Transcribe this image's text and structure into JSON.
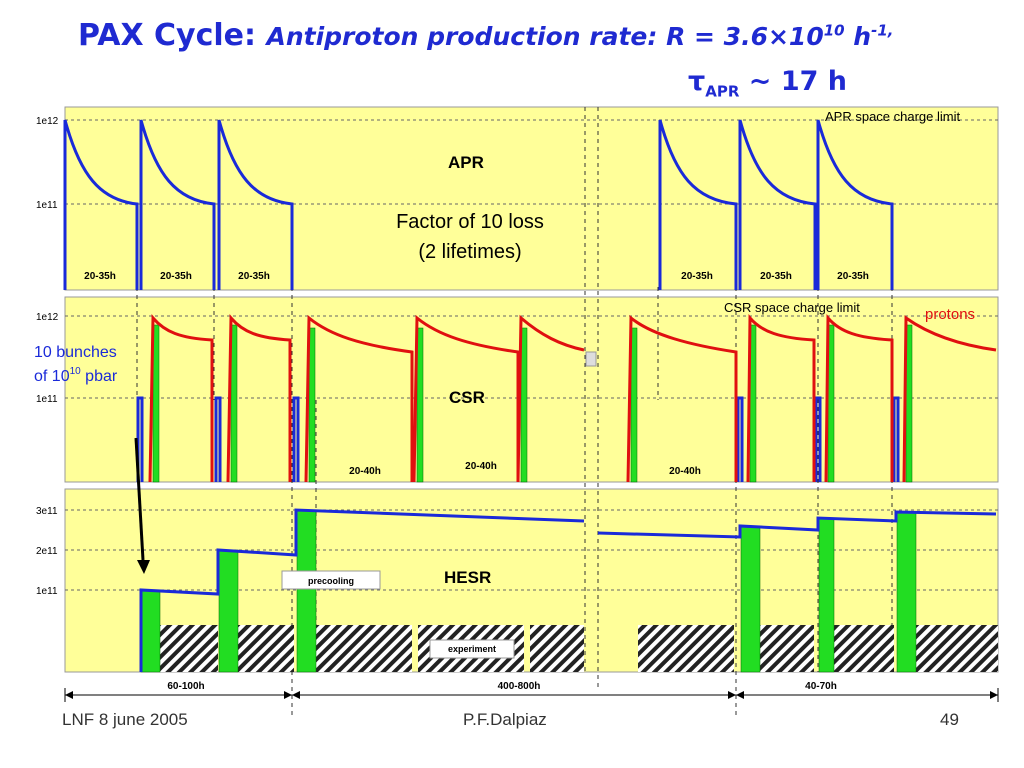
{
  "title": {
    "main": "PAX Cycle:",
    "subtitle_prefix": "Antiproton production rate: R = 3.6×10",
    "rate_exponent": "10",
    "subtitle_unit": " h",
    "unit_exponent": "-1,",
    "tau_symbol": "τ",
    "tau_subscript": "APR",
    "tau_value": " ~ 17 h"
  },
  "footer": {
    "left": "LNF   8 june 2005",
    "center": "P.F.Dalpiaz",
    "page": "49"
  },
  "labels": {
    "apr_limit": "APR space charge limit",
    "csr_limit": "CSR space charge limit",
    "protons": "protons",
    "bunches_line1": "10 bunches",
    "bunches_line2_prefix": "of 10",
    "bunches_exponent": "10",
    "bunches_line2_suffix": " pbar",
    "factor_line1": "Factor of 10 loss",
    "factor_line2": "(2 lifetimes)",
    "precooling": "precooling",
    "experiment": "experiment"
  },
  "panels": {
    "apr": {
      "name": "APR",
      "y_ticks": [
        "1e12",
        "1e11"
      ],
      "duration_labels": [
        "20-35h",
        "20-35h",
        "20-35h",
        "20-35h",
        "20-35h",
        "20-35h"
      ]
    },
    "csr": {
      "name": "CSR",
      "y_ticks": [
        "1e12",
        "1e11"
      ],
      "duration_labels": [
        "20-40h",
        "20-40h",
        "20-40h"
      ]
    },
    "hesr": {
      "name": "HESR",
      "y_ticks": [
        "3e11",
        "2e11",
        "1e11"
      ]
    }
  },
  "timeline": {
    "labels": [
      "60-100h",
      "400-800h",
      "40-70h"
    ]
  },
  "colors": {
    "title": "#1f2ad1",
    "panel_bg": "#ffff99",
    "apr_curve": "#1a2ad9",
    "proton_curve": "#e01010",
    "green_fill": "#22dd22",
    "protons_label": "#e01010",
    "bunch_label": "#1a2ad9"
  }
}
